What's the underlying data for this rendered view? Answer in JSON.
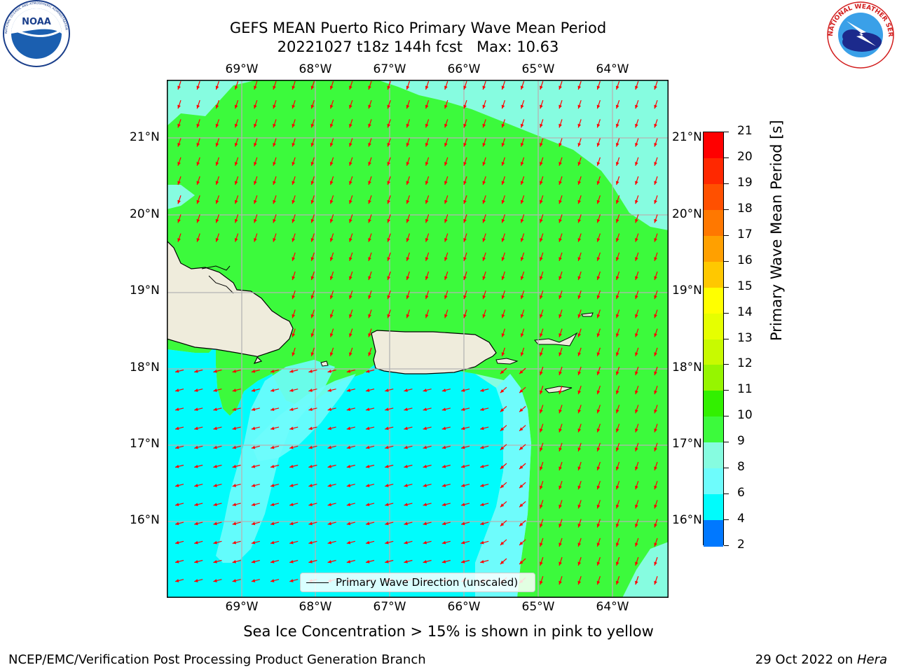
{
  "header": {
    "title_line1": "GEFS MEAN Puerto Rico Primary Wave Mean Period",
    "title_line2": "20221027 t18z 144h fcst   Max: 10.63"
  },
  "logos": {
    "noaa": "NOAA",
    "noaa_ring_text": "NATIONAL OCEANIC AND ATMOSPHERIC ADMINISTRATION · U.S. DEPARTMENT OF COMMERCE",
    "nws_ring_text": "NATIONAL WEATHER SERVICE"
  },
  "map": {
    "lon_labels": [
      "69°W",
      "68°W",
      "67°W",
      "66°W",
      "65°W",
      "64°W"
    ],
    "lat_labels": [
      "21°N",
      "20°N",
      "19°N",
      "18°N",
      "17°N",
      "16°N"
    ],
    "legend_text": "Primary Wave Direction (unscaled)",
    "colors": {
      "land": "#efecdc",
      "green": "#3cfa3c",
      "aquamarine": "#86fce0",
      "lightcyan": "#6efcfc",
      "cyan": "#00fcfc",
      "arrow": "#ff0000",
      "grid": "#b4b4b4"
    }
  },
  "colorbar": {
    "label": "Primary Wave Mean Period [s]",
    "ticks": [
      "21",
      "20",
      "19",
      "18",
      "17",
      "16",
      "15",
      "14",
      "13",
      "12",
      "11",
      "10",
      "9",
      "8",
      "6",
      "4",
      "2"
    ],
    "colors": [
      "#ff0000",
      "#ff2800",
      "#ff5000",
      "#ff7800",
      "#ffa000",
      "#ffc800",
      "#ffff00",
      "#e6ff00",
      "#c8fa00",
      "#96f500",
      "#32f000",
      "#3cfa3c",
      "#86fce0",
      "#6efcfc",
      "#00fcfc",
      "#0078ff",
      "#0000ff"
    ]
  },
  "footer": {
    "ice_note": "Sea Ice Concentration > 15% is shown in pink to yellow",
    "branch": "NCEP/EMC/Verification Post Processing Product Generation Branch",
    "date_text": "29 Oct 2022 on ",
    "machine": "Hera"
  }
}
